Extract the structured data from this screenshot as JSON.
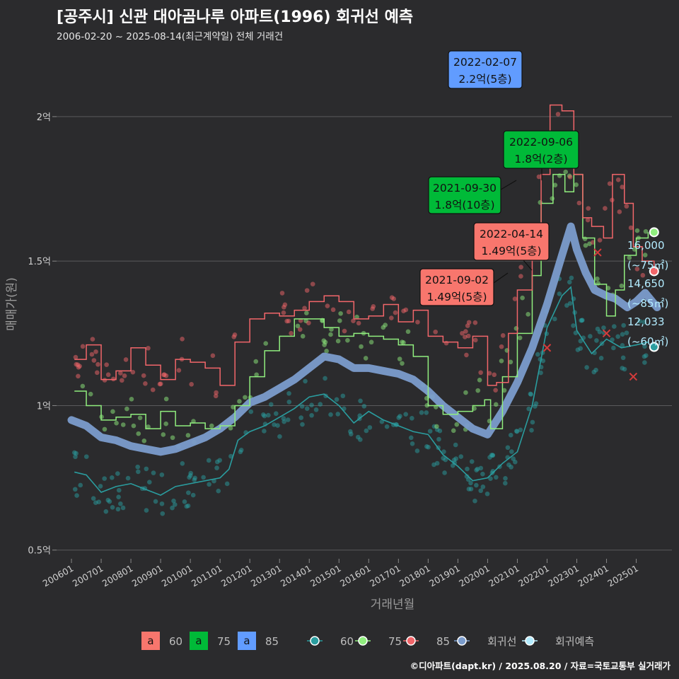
{
  "header": {
    "title": "[공주시] 신관 대아곰나루 아파트(1996) 회귀선 예측",
    "subtitle": "2006-02-20 ~ 2025-08-14(최근계약일) 전체 거래건"
  },
  "footer": "©디아파트(dapt.kr) / 2025.08.20 / 자료=국토교통부 실거래가",
  "chart_data": {
    "type": "line",
    "xlabel": "거래년월",
    "ylabel": "매매가(원)",
    "x_ticks": [
      "200601",
      "200701",
      "200801",
      "200901",
      "201001",
      "201101",
      "201201",
      "201301",
      "201401",
      "201501",
      "201601",
      "201701",
      "201801",
      "201901",
      "202001",
      "202101",
      "202201",
      "202301",
      "202401",
      "202501"
    ],
    "y_ticks": [
      {
        "value": 0.5,
        "label": "0.5억"
      },
      {
        "value": 1.0,
        "label": "1억"
      },
      {
        "value": 1.5,
        "label": "1.5억"
      },
      {
        "value": 2.0,
        "label": "2억"
      }
    ],
    "xlim": [
      2005.5,
      2026.2
    ],
    "ylim": [
      0.47,
      2.22
    ],
    "grid": true,
    "legend_position": "bottom",
    "colors": {
      "s60": "#2a9d9f",
      "s75": "#90ee7e",
      "s85": "#f2666a",
      "regression": "#7b9ccc",
      "forecast": "#b3ecff",
      "box60": "#f8766d",
      "box75": "#00ba38",
      "box85": "#619cff"
    },
    "series": [
      {
        "name": "60",
        "color": "#2a9d9f",
        "x": [
          2006.1,
          2006.5,
          2007.0,
          2007.5,
          2008.0,
          2008.5,
          2009.0,
          2009.5,
          2010.0,
          2010.5,
          2011.0,
          2011.3,
          2011.6,
          2012.0,
          2012.5,
          2013.0,
          2013.5,
          2014.0,
          2014.5,
          2015.0,
          2015.5,
          2016.0,
          2016.5,
          2017.0,
          2017.5,
          2018.0,
          2018.5,
          2019.0,
          2019.5,
          2020.0,
          2020.5,
          2021.0,
          2021.5,
          2022.0,
          2022.5,
          2022.8,
          2023.0,
          2023.5,
          2024.0,
          2024.5,
          2025.0,
          2025.4
        ],
        "y": [
          0.77,
          0.76,
          0.7,
          0.72,
          0.73,
          0.71,
          0.69,
          0.72,
          0.73,
          0.74,
          0.75,
          0.78,
          0.88,
          0.91,
          0.93,
          0.96,
          0.99,
          1.03,
          1.04,
          1.0,
          0.94,
          0.98,
          0.95,
          0.93,
          0.91,
          0.9,
          0.83,
          0.79,
          0.74,
          0.75,
          0.8,
          0.84,
          1.0,
          1.27,
          1.38,
          1.41,
          1.26,
          1.18,
          1.23,
          1.2,
          1.21,
          1.22
        ]
      },
      {
        "name": "75",
        "color": "#90ee7e",
        "x": [
          2006.1,
          2006.5,
          2007.0,
          2007.5,
          2008.0,
          2008.5,
          2009.0,
          2009.5,
          2010.0,
          2010.5,
          2011.0,
          2011.5,
          2012.0,
          2012.5,
          2013.0,
          2013.5,
          2014.0,
          2014.5,
          2015.0,
          2015.5,
          2016.0,
          2016.5,
          2017.0,
          2017.5,
          2018.0,
          2018.5,
          2019.0,
          2019.5,
          2019.9,
          2020.1,
          2020.5,
          2021.0,
          2021.5,
          2021.8,
          2022.2,
          2022.6,
          2022.9,
          2023.2,
          2023.6,
          2024.0,
          2024.3,
          2024.6,
          2025.0,
          2025.4
        ],
        "y": [
          1.05,
          1.0,
          0.95,
          0.96,
          0.97,
          0.92,
          0.98,
          0.93,
          0.94,
          0.92,
          0.93,
          1.0,
          1.1,
          1.19,
          1.24,
          1.3,
          1.3,
          1.27,
          1.24,
          1.25,
          1.24,
          1.23,
          1.21,
          1.17,
          1.0,
          0.97,
          0.98,
          1.0,
          1.02,
          0.92,
          1.1,
          1.25,
          1.45,
          1.7,
          1.8,
          1.74,
          1.8,
          1.58,
          1.42,
          1.31,
          1.4,
          1.52,
          1.58,
          1.6
        ]
      },
      {
        "name": "85",
        "color": "#f2666a",
        "x": [
          2006.1,
          2006.5,
          2007.0,
          2007.5,
          2008.0,
          2008.5,
          2009.0,
          2009.5,
          2010.0,
          2010.5,
          2011.0,
          2011.5,
          2012.0,
          2012.5,
          2013.0,
          2013.5,
          2014.0,
          2014.5,
          2015.0,
          2015.5,
          2016.0,
          2016.5,
          2017.0,
          2017.5,
          2018.0,
          2018.5,
          2019.0,
          2019.5,
          2020.0,
          2020.3,
          2020.7,
          2021.0,
          2021.5,
          2021.8,
          2022.1,
          2022.5,
          2022.9,
          2023.2,
          2023.5,
          2023.9,
          2024.2,
          2024.6,
          2024.9,
          2025.2,
          2025.6
        ],
        "y": [
          1.16,
          1.21,
          1.09,
          1.12,
          1.2,
          1.14,
          1.09,
          1.16,
          1.15,
          1.13,
          1.07,
          1.22,
          1.3,
          1.32,
          1.31,
          1.33,
          1.36,
          1.38,
          1.36,
          1.3,
          1.31,
          1.35,
          1.29,
          1.33,
          1.24,
          1.22,
          1.2,
          1.24,
          1.07,
          1.08,
          1.25,
          1.4,
          1.56,
          1.8,
          2.04,
          2.02,
          1.8,
          1.65,
          1.62,
          1.58,
          1.8,
          1.7,
          1.55,
          1.5,
          1.47
        ]
      },
      {
        "name": "회귀선",
        "color": "#7b9ccc",
        "x": [
          2006.0,
          2006.5,
          2007.0,
          2007.5,
          2008.0,
          2008.5,
          2009.0,
          2009.5,
          2010.0,
          2010.5,
          2011.0,
          2011.5,
          2012.0,
          2012.5,
          2013.0,
          2013.5,
          2014.0,
          2014.5,
          2015.0,
          2015.5,
          2016.0,
          2016.5,
          2017.0,
          2017.5,
          2018.0,
          2018.5,
          2019.0,
          2019.5,
          2020.0,
          2020.5,
          2021.0,
          2021.5,
          2022.0,
          2022.5,
          2022.8,
          2023.0,
          2023.3,
          2023.6,
          2024.0,
          2024.3,
          2024.7,
          2025.0,
          2025.3,
          2025.7
        ],
        "y": [
          0.95,
          0.93,
          0.89,
          0.88,
          0.86,
          0.85,
          0.84,
          0.85,
          0.87,
          0.89,
          0.92,
          0.96,
          1.01,
          1.03,
          1.06,
          1.09,
          1.13,
          1.17,
          1.16,
          1.13,
          1.13,
          1.12,
          1.11,
          1.09,
          1.05,
          1.0,
          0.96,
          0.92,
          0.9,
          0.98,
          1.08,
          1.2,
          1.35,
          1.52,
          1.62,
          1.54,
          1.46,
          1.4,
          1.38,
          1.37,
          1.34,
          1.36,
          1.39,
          1.34
        ]
      }
    ],
    "end_points": [
      {
        "series": "75",
        "x": 2025.6,
        "y": 1.6,
        "color": "#90ee7e"
      },
      {
        "series": "85",
        "x": 2025.6,
        "y": 1.465,
        "color": "#f2666a"
      },
      {
        "series": "60",
        "x": 2025.6,
        "y": 1.203,
        "color": "#2a9d9f"
      }
    ],
    "end_labels": [
      "16,000",
      "(~75㎡)",
      "14,650",
      "(~85㎡)",
      "12,033",
      "(~60㎡)"
    ],
    "callouts": [
      {
        "date": "2022-02-07",
        "price": "2.2억(5층)",
        "bg": "#619cff",
        "x": 2022.1,
        "y": 2.2
      },
      {
        "date": "2022-09-06",
        "price": "1.8억(2층)",
        "bg": "#00ba38",
        "x": 2022.7,
        "y": 1.8
      },
      {
        "date": "2021-09-30",
        "price": "1.8억(10층)",
        "bg": "#00ba38",
        "x": 2021.75,
        "y": 1.8
      },
      {
        "date": "2022-04-14",
        "price": "1.49억(5층)",
        "bg": "#f8766d",
        "x": 2022.3,
        "y": 1.49
      },
      {
        "date": "2021-09-02",
        "price": "1.49억(5층)",
        "bg": "#f8766d",
        "x": 2021.7,
        "y": 1.49
      }
    ],
    "cross_marks": [
      {
        "x": 2022.0,
        "y": 1.2,
        "color": "#d43b3b"
      },
      {
        "x": 2023.7,
        "y": 1.53,
        "color": "#d43b3b"
      },
      {
        "x": 2024.0,
        "y": 1.25,
        "color": "#d43b3b"
      },
      {
        "x": 2024.9,
        "y": 1.1,
        "color": "#d43b3b"
      }
    ],
    "legend": {
      "box_letter": "a",
      "box_items": [
        "60",
        "75",
        "85"
      ],
      "line_items": [
        "60",
        "75",
        "85",
        "회귀선",
        "회귀예측"
      ]
    }
  }
}
